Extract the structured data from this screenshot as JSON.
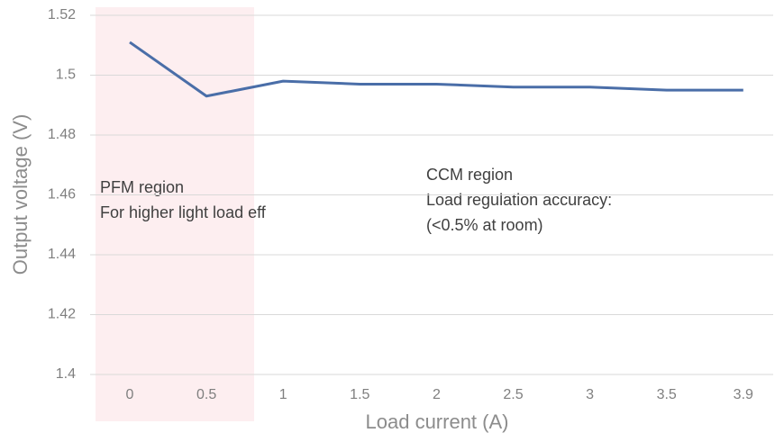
{
  "chart_data": {
    "type": "line",
    "x_label": "Load current (A)",
    "y_label": "Output voltage (V)",
    "categories": [
      "0",
      "0.5",
      "1",
      "1.5",
      "2",
      "2.5",
      "3",
      "3.5",
      "3.9"
    ],
    "series": [
      {
        "color": "#4a6ea8",
        "values": [
          1.511,
          1.493,
          1.498,
          1.497,
          1.497,
          1.496,
          1.496,
          1.495,
          1.495
        ]
      }
    ],
    "ylim": [
      1.4,
      1.52
    ],
    "yticks": [
      1.4,
      1.42,
      1.44,
      1.46,
      1.48,
      1.5,
      1.52
    ],
    "grid": true,
    "annotations": [
      [
        "PFM region",
        "For higher light load eff"
      ],
      [
        "CCM region",
        "Load regulation accuracy:",
        "(<0.5% at room)"
      ]
    ]
  }
}
